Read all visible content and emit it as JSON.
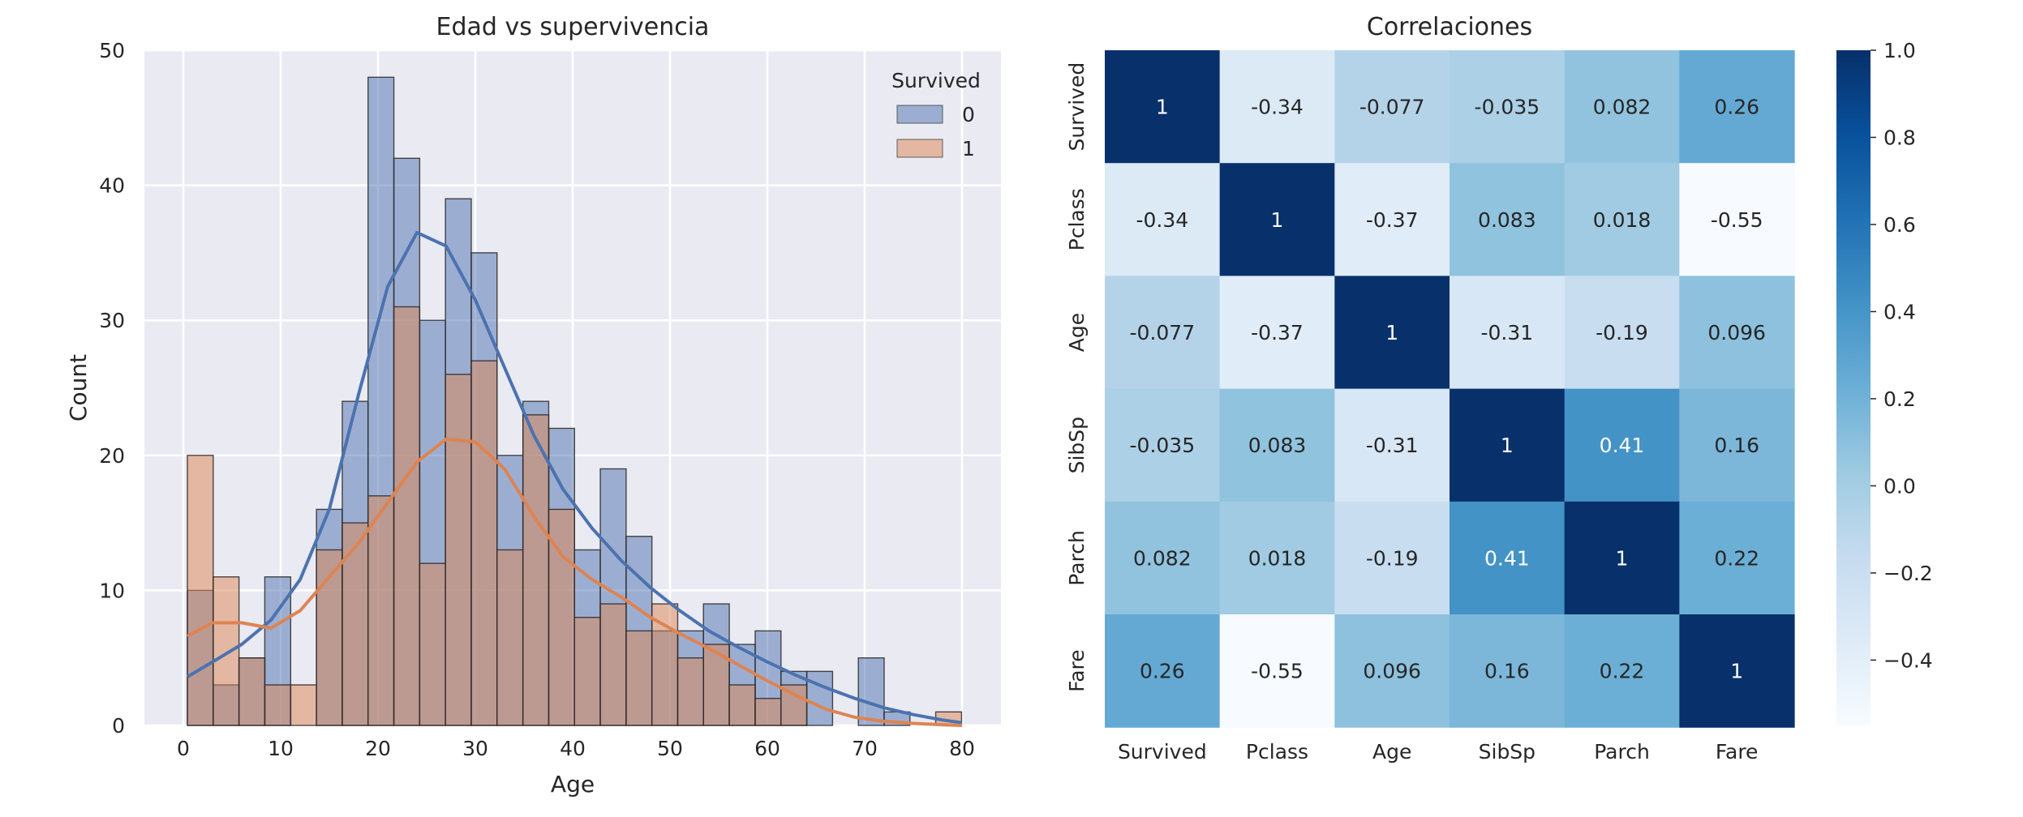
{
  "figure": {
    "colors": {
      "axes_bg": "#eaeaf2",
      "grid": "#ffffff",
      "text": "#262626",
      "hist_fill_0": "#4c72b0",
      "hist_fill_1": "#dd8452",
      "kde_0": "#4c72b0",
      "kde_1": "#dd8452",
      "heatmap_cmap": "Blues"
    }
  },
  "chart_data": [
    {
      "type": "histogram",
      "title": "Edad vs supervivencia",
      "xlabel": "Age",
      "ylabel": "Count",
      "xlim": [
        -4,
        84
      ],
      "ylim": [
        0,
        50
      ],
      "xticks": [
        0,
        10,
        20,
        30,
        40,
        50,
        60,
        70,
        80
      ],
      "yticks": [
        0,
        10,
        20,
        30,
        40,
        50
      ],
      "grid": true,
      "legend": {
        "title": "Survived",
        "placement": "top-right",
        "entries": [
          "0",
          "1"
        ]
      },
      "bin_edges": [
        0.42,
        3.07,
        5.72,
        8.37,
        11.03,
        13.68,
        16.33,
        18.98,
        21.63,
        24.28,
        26.93,
        29.58,
        32.23,
        34.89,
        37.54,
        40.19,
        42.84,
        45.49,
        48.14,
        50.79,
        53.44,
        56.09,
        58.75,
        61.4,
        64.05,
        66.7,
        69.35,
        72.0,
        74.65,
        77.3,
        79.95
      ],
      "series": [
        {
          "name": "0",
          "counts": [
            10,
            3,
            5,
            11,
            0,
            16,
            24,
            48,
            42,
            30,
            39,
            35,
            20,
            24,
            22,
            13,
            19,
            14,
            7,
            7,
            9,
            6,
            7,
            4,
            4,
            0,
            5,
            1,
            0,
            0
          ],
          "kde": [
            [
              0.42,
              3.6
            ],
            [
              3,
              4.7
            ],
            [
              6,
              6.0
            ],
            [
              9,
              7.8
            ],
            [
              12,
              10.8
            ],
            [
              15,
              16.0
            ],
            [
              18,
              24.5
            ],
            [
              21,
              32.5
            ],
            [
              24,
              36.5
            ],
            [
              27,
              35.5
            ],
            [
              30,
              31.5
            ],
            [
              33,
              26.5
            ],
            [
              36,
              21.5
            ],
            [
              39,
              17.5
            ],
            [
              42,
              14.6
            ],
            [
              45,
              12.2
            ],
            [
              48,
              10.2
            ],
            [
              51,
              8.5
            ],
            [
              54,
              7.0
            ],
            [
              57,
              5.8
            ],
            [
              60,
              4.7
            ],
            [
              63,
              3.7
            ],
            [
              66,
              2.8
            ],
            [
              69,
              2.0
            ],
            [
              72,
              1.3
            ],
            [
              75,
              0.8
            ],
            [
              78,
              0.4
            ],
            [
              80,
              0.2
            ]
          ]
        },
        {
          "name": "1",
          "counts": [
            20,
            11,
            5,
            3,
            3,
            13,
            15,
            17,
            31,
            12,
            26,
            27,
            13,
            23,
            16,
            8,
            9,
            7,
            9,
            5,
            6,
            3,
            2,
            3,
            0,
            0,
            0,
            0,
            0,
            1
          ],
          "kde": [
            [
              0.42,
              6.6
            ],
            [
              3,
              7.6
            ],
            [
              6,
              7.6
            ],
            [
              9,
              7.2
            ],
            [
              12,
              8.5
            ],
            [
              15,
              11.0
            ],
            [
              18,
              13.5
            ],
            [
              21,
              16.5
            ],
            [
              24,
              19.5
            ],
            [
              27,
              21.2
            ],
            [
              30,
              21.0
            ],
            [
              33,
              19.0
            ],
            [
              36,
              15.5
            ],
            [
              39,
              12.5
            ],
            [
              42,
              10.8
            ],
            [
              45,
              9.5
            ],
            [
              48,
              8.0
            ],
            [
              51,
              6.8
            ],
            [
              54,
              5.7
            ],
            [
              57,
              4.5
            ],
            [
              60,
              3.3
            ],
            [
              63,
              2.2
            ],
            [
              66,
              1.2
            ],
            [
              69,
              0.6
            ],
            [
              72,
              0.3
            ],
            [
              75,
              0.15
            ],
            [
              78,
              0.05
            ],
            [
              80,
              0.0
            ]
          ]
        }
      ]
    },
    {
      "type": "heatmap",
      "title": "Correlaciones",
      "rows": [
        "Survived",
        "Pclass",
        "Age",
        "SibSp",
        "Parch",
        "Fare"
      ],
      "cols": [
        "Survived",
        "Pclass",
        "Age",
        "SibSp",
        "Parch",
        "Fare"
      ],
      "values": [
        [
          1,
          -0.34,
          -0.077,
          -0.035,
          0.082,
          0.26
        ],
        [
          -0.34,
          1,
          -0.37,
          0.083,
          0.018,
          -0.55
        ],
        [
          -0.077,
          -0.37,
          1,
          -0.31,
          -0.19,
          0.096
        ],
        [
          -0.035,
          0.083,
          -0.31,
          1,
          0.41,
          0.16
        ],
        [
          0.082,
          0.018,
          -0.19,
          0.41,
          1,
          0.22
        ],
        [
          0.26,
          -0.55,
          0.096,
          0.16,
          0.22,
          1
        ]
      ],
      "labels": [
        [
          "1",
          "-0.34",
          "-0.077",
          "-0.035",
          "0.082",
          "0.26"
        ],
        [
          "-0.34",
          "1",
          "-0.37",
          "0.083",
          "0.018",
          "-0.55"
        ],
        [
          "-0.077",
          "-0.37",
          "1",
          "-0.31",
          "-0.19",
          "0.096"
        ],
        [
          "-0.035",
          "0.083",
          "-0.31",
          "1",
          "0.41",
          "0.16"
        ],
        [
          "0.082",
          "0.018",
          "-0.19",
          "0.41",
          "1",
          "0.22"
        ],
        [
          "0.26",
          "-0.55",
          "0.096",
          "0.16",
          "0.22",
          "1"
        ]
      ],
      "colorbar": {
        "min": -0.55,
        "max": 1.0,
        "ticks": [
          1.0,
          0.8,
          0.6,
          0.4,
          0.2,
          0.0,
          -0.2,
          -0.4
        ],
        "tick_labels": [
          "1.0",
          "0.8",
          "0.6",
          "0.4",
          "0.2",
          "0.0",
          "−0.2",
          "−0.4"
        ]
      }
    }
  ]
}
